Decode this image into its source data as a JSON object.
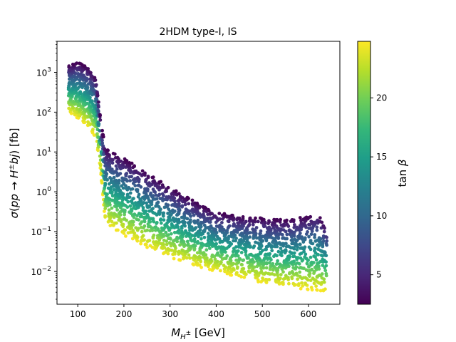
{
  "chart_data": {
    "type": "scatter",
    "title": "2HDM type-I, IS",
    "xlabel": "M_{H^±} [GeV]",
    "ylabel": "σ(pp → H^± bj) [fb]",
    "colorbar_label": "tan β",
    "xlim": [
      55,
      668
    ],
    "ylim": [
      0.0015,
      6000
    ],
    "yscale": "log",
    "x_ticks": [
      100,
      200,
      300,
      400,
      500,
      600
    ],
    "y_ticks": [
      0.01,
      0.1,
      1,
      10,
      100,
      1000
    ],
    "y_tick_labels": [
      {
        "base": "10",
        "exp": "−2"
      },
      {
        "base": "10",
        "exp": "−1"
      },
      {
        "base": "10",
        "exp": "0"
      },
      {
        "base": "10",
        "exp": "1"
      },
      {
        "base": "10",
        "exp": "2"
      },
      {
        "base": "10",
        "exp": "3"
      }
    ],
    "colorbar_range": [
      2.5,
      24.8
    ],
    "colorbar_ticks": [
      5,
      10,
      15,
      20
    ],
    "colormap": "viridis",
    "colormap_stops": [
      "#440154",
      "#482878",
      "#3e4989",
      "#31688e",
      "#26828e",
      "#1f9e89",
      "#35b779",
      "#6ece58",
      "#b5de2b",
      "#fde725"
    ],
    "grid": false,
    "points_summary": {
      "x_range": [
        80,
        640
      ],
      "band_top": [
        [
          80,
          1500
        ],
        [
          100,
          1800
        ],
        [
          125,
          1300
        ],
        [
          140,
          700
        ],
        [
          150,
          60
        ],
        [
          160,
          12
        ],
        [
          200,
          7
        ],
        [
          250,
          3
        ],
        [
          300,
          1.3
        ],
        [
          350,
          0.6
        ],
        [
          400,
          0.3
        ],
        [
          450,
          0.25
        ],
        [
          500,
          0.22
        ],
        [
          550,
          0.2
        ],
        [
          600,
          0.25
        ],
        [
          620,
          0.3
        ],
        [
          640,
          0.12
        ]
      ],
      "band_bottom": [
        [
          80,
          100
        ],
        [
          100,
          70
        ],
        [
          125,
          40
        ],
        [
          140,
          20
        ],
        [
          150,
          3
        ],
        [
          160,
          0.15
        ],
        [
          200,
          0.08
        ],
        [
          250,
          0.04
        ],
        [
          300,
          0.022
        ],
        [
          350,
          0.014
        ],
        [
          400,
          0.01
        ],
        [
          450,
          0.007
        ],
        [
          500,
          0.005
        ],
        [
          550,
          0.004
        ],
        [
          600,
          0.0035
        ],
        [
          640,
          0.003
        ]
      ]
    }
  }
}
